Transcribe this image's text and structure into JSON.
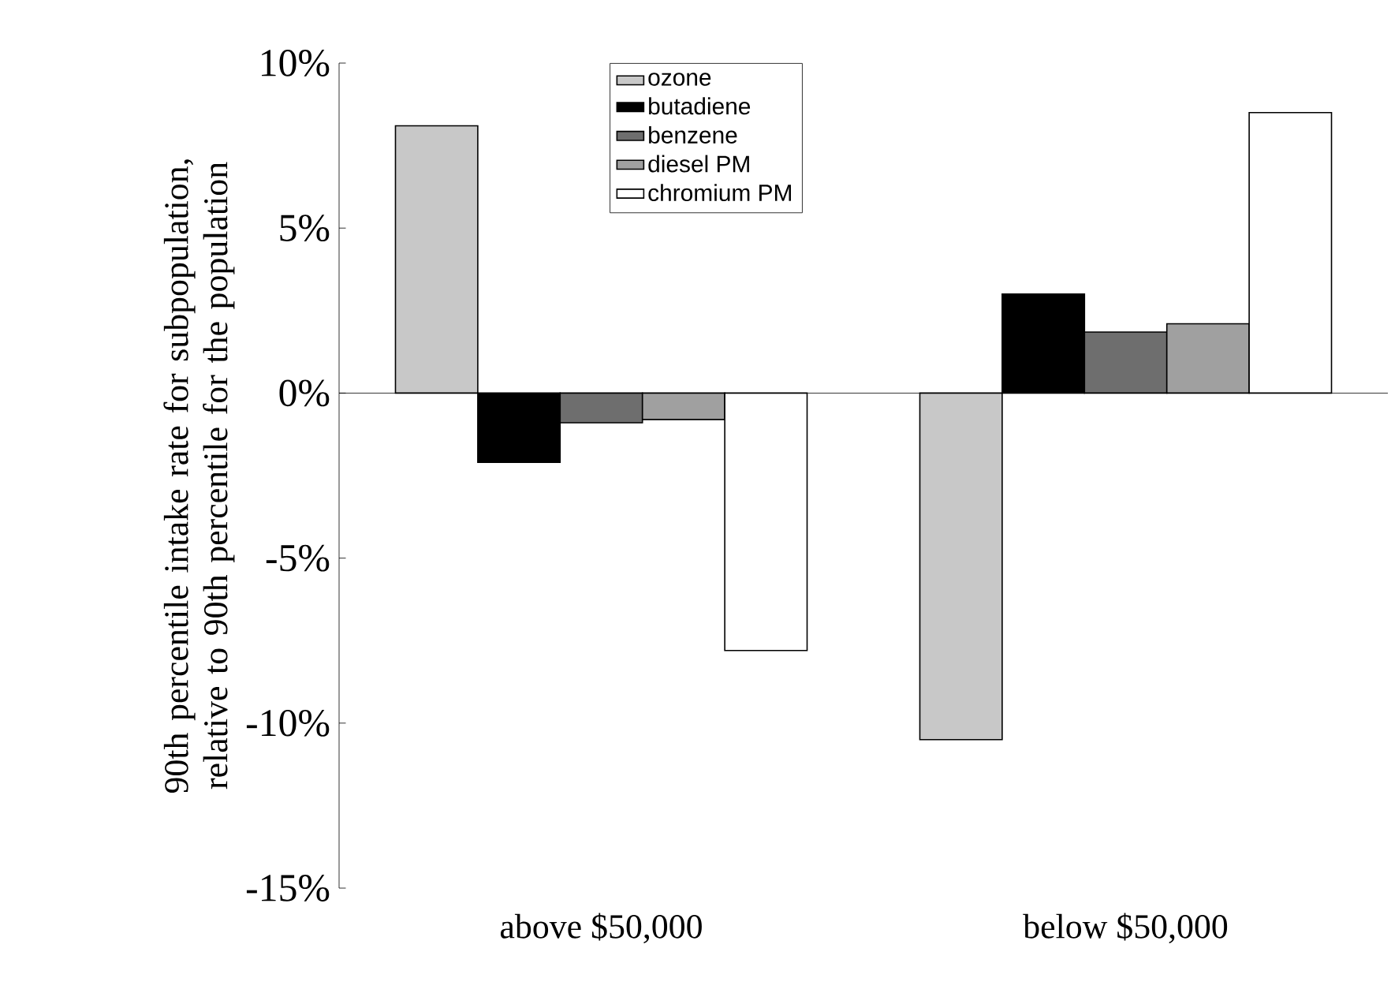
{
  "chart_data": {
    "type": "bar",
    "ylabel": "90th percentile intake rate for subpopulation, relative to 90th percentile for the population",
    "categories": [
      "above $50,000",
      "below $50,000"
    ],
    "series": [
      {
        "name": "ozone",
        "color": "#c8c8c8",
        "values": [
          8.1,
          -10.5
        ]
      },
      {
        "name": "butadiene",
        "color": "#000000",
        "values": [
          -2.1,
          3.0
        ]
      },
      {
        "name": "benzene",
        "color": "#6e6e6e",
        "values": [
          -0.9,
          1.85
        ]
      },
      {
        "name": "diesel PM",
        "color": "#a0a0a0",
        "values": [
          -0.8,
          2.1
        ]
      },
      {
        "name": "chromium PM",
        "color": "#ffffff",
        "values": [
          -7.8,
          8.5
        ]
      }
    ],
    "ylim": [
      -15,
      10
    ],
    "yticks": [
      {
        "value": -15,
        "label": "-15%"
      },
      {
        "value": -10,
        "label": "-10%"
      },
      {
        "value": -5,
        "label": "-5%"
      },
      {
        "value": 0,
        "label": "0%"
      },
      {
        "value": 5,
        "label": "5%"
      },
      {
        "value": 10,
        "label": "10%"
      }
    ],
    "legend": "top"
  }
}
